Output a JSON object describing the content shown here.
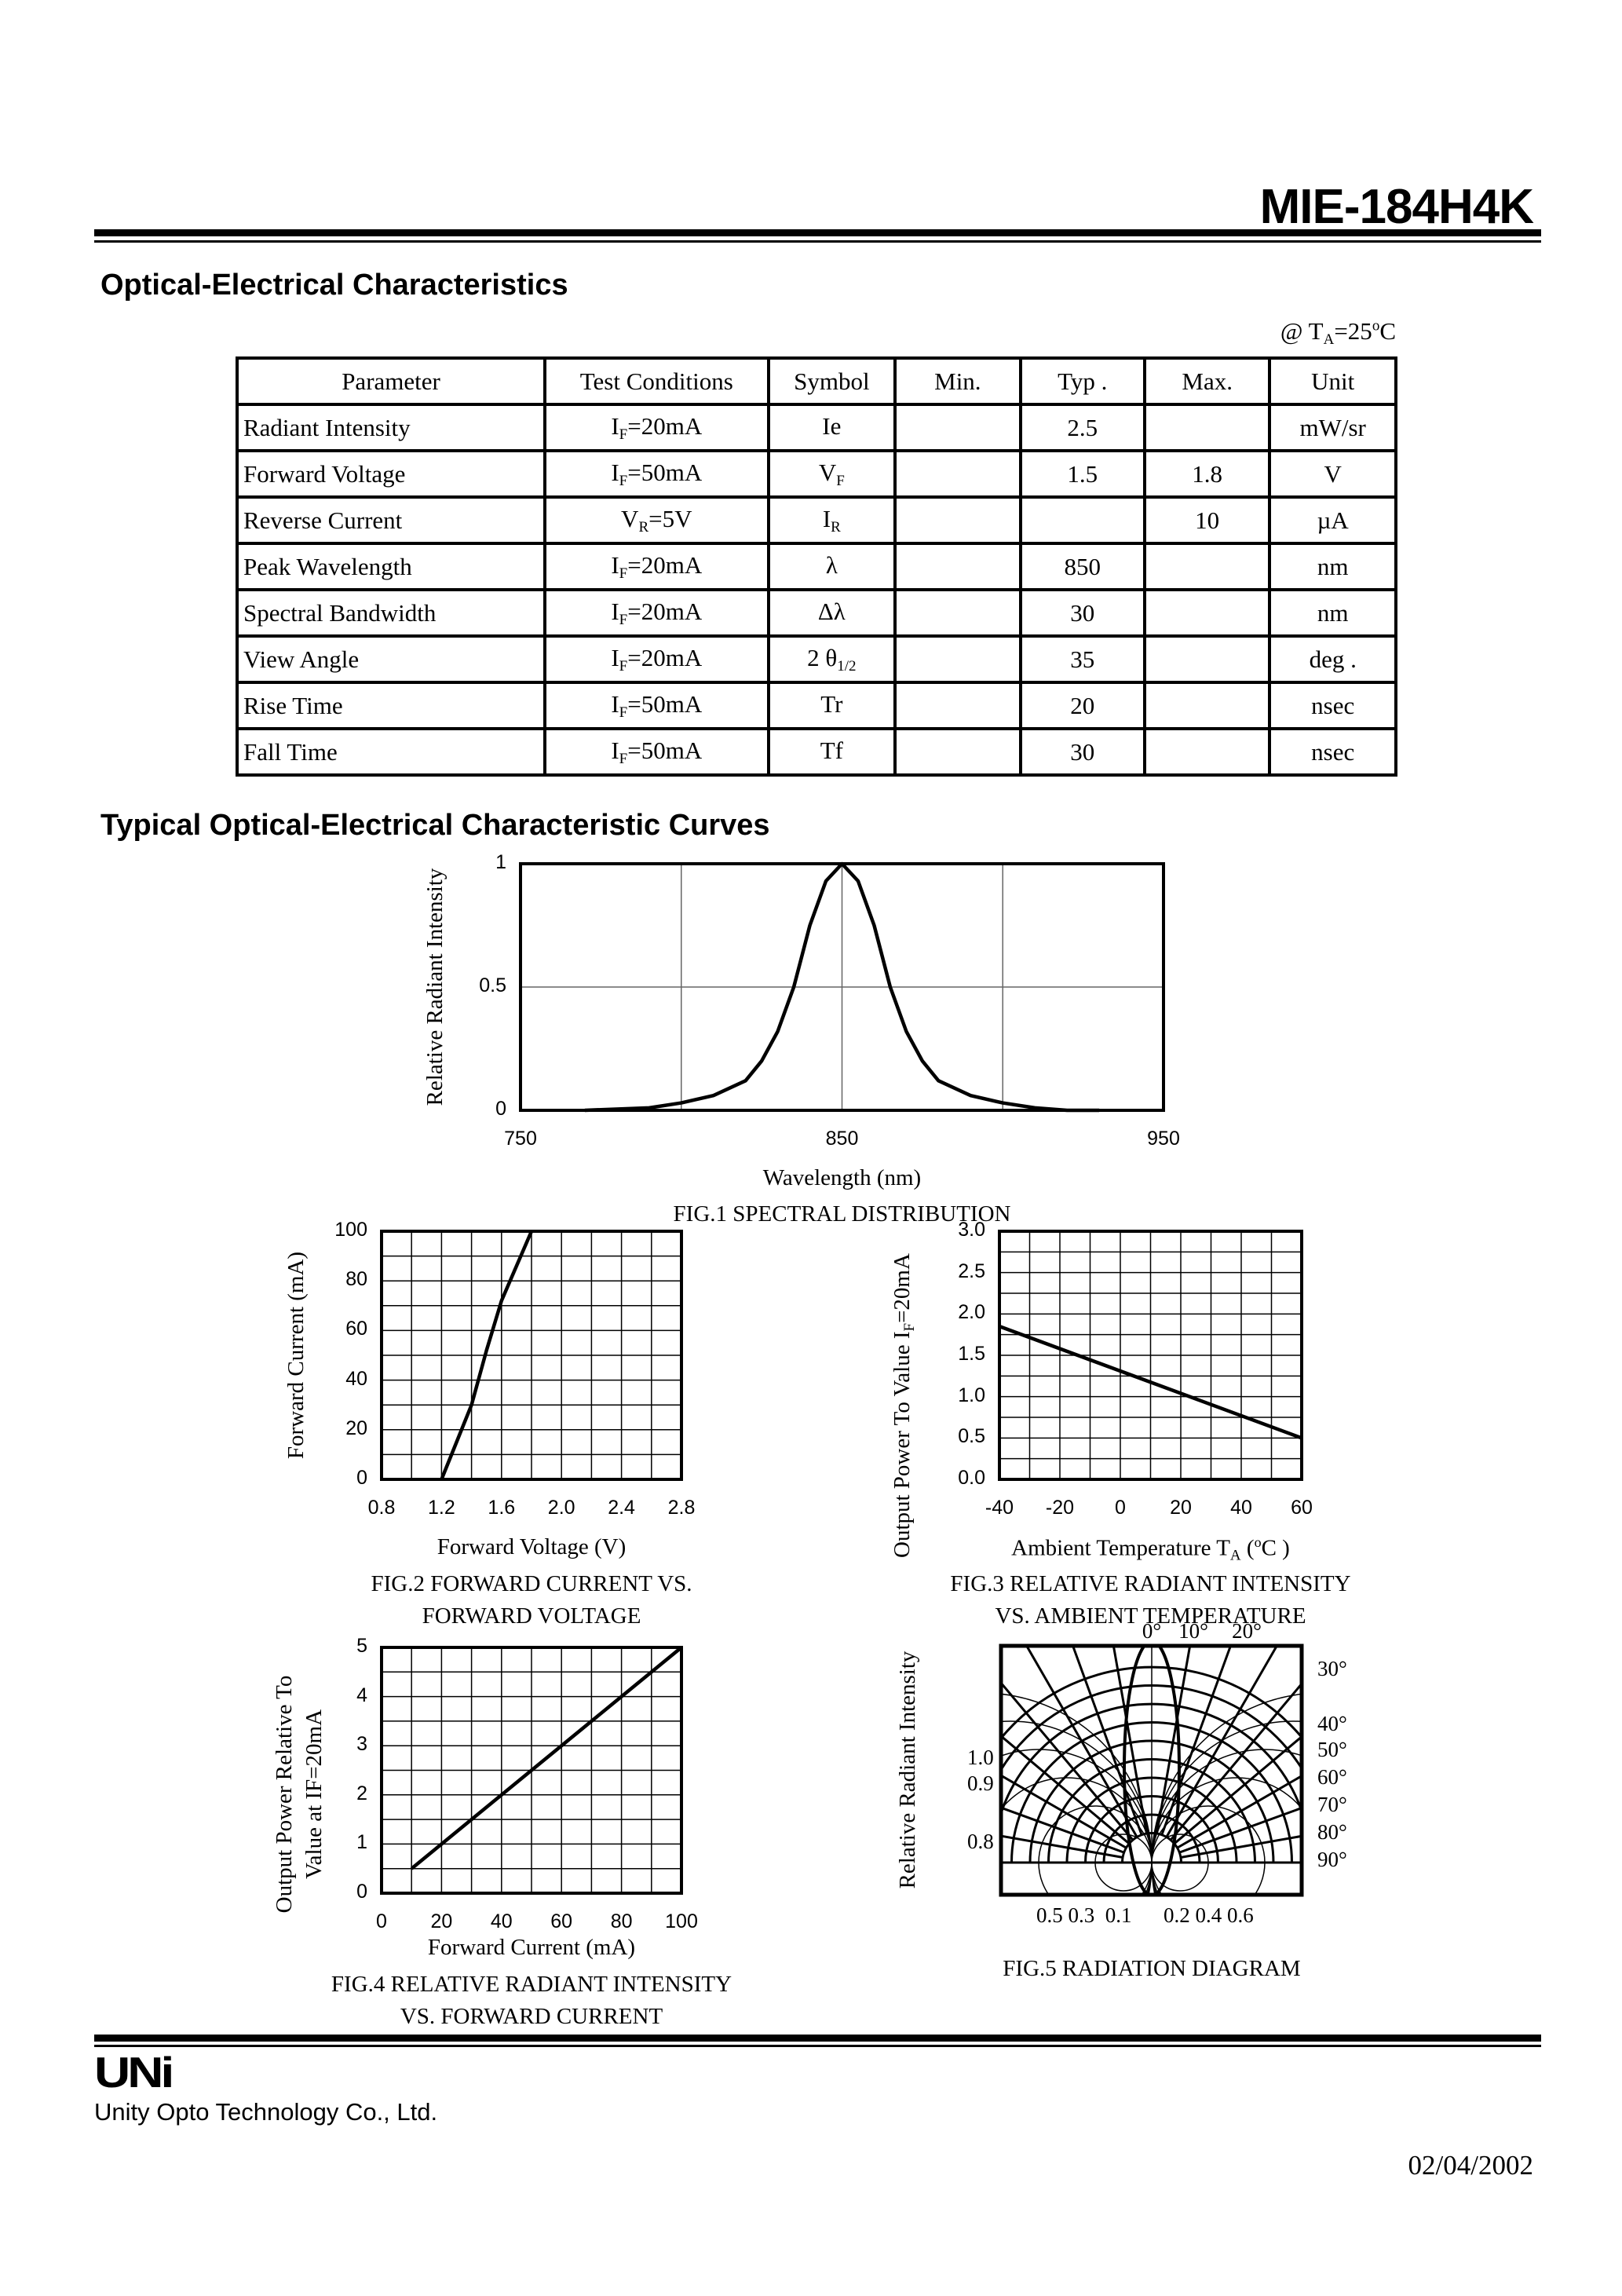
{
  "header": {
    "part_number": "MIE-184H4K"
  },
  "section1": {
    "title": "Optical-Electrical Characteristics",
    "condition": {
      "prefix": "@ T",
      "sub": "A",
      "suffix": "=25",
      "sup": "o",
      "unit": "C"
    }
  },
  "table": {
    "headers": [
      "Parameter",
      "Test Conditions",
      "Symbol",
      "Min.",
      "Typ .",
      "Max.",
      "Unit"
    ],
    "rows": [
      {
        "parameter": "Radiant Intensity",
        "cond": {
          "a": "I",
          "s": "F",
          "b": "=20mA"
        },
        "sym": {
          "a": "Ie",
          "s": ""
        },
        "min": "",
        "typ": "2.5",
        "max": "",
        "unit": "mW/sr"
      },
      {
        "parameter": "Forward Voltage",
        "cond": {
          "a": "I",
          "s": "F",
          "b": "=50mA"
        },
        "sym": {
          "a": "V",
          "s": "F"
        },
        "min": "",
        "typ": "1.5",
        "max": "1.8",
        "unit": "V"
      },
      {
        "parameter": "Reverse Current",
        "cond": {
          "a": "V",
          "s": "R",
          "b": "=5V"
        },
        "sym": {
          "a": "I",
          "s": "R"
        },
        "min": "",
        "typ": "",
        "max": "10",
        "unit": "µA"
      },
      {
        "parameter": "Peak Wavelength",
        "cond": {
          "a": "I",
          "s": "F",
          "b": "=20mA"
        },
        "sym": {
          "a": "λ",
          "s": ""
        },
        "min": "",
        "typ": "850",
        "max": "",
        "unit": "nm"
      },
      {
        "parameter": "Spectral Bandwidth",
        "cond": {
          "a": "I",
          "s": "F",
          "b": "=20mA"
        },
        "sym": {
          "a": "Δλ",
          "s": ""
        },
        "min": "",
        "typ": "30",
        "max": "",
        "unit": "nm"
      },
      {
        "parameter": "View Angle",
        "cond": {
          "a": "I",
          "s": "F",
          "b": "=20mA"
        },
        "sym": {
          "a": "2 θ",
          "s": "1/2"
        },
        "min": "",
        "typ": "35",
        "max": "",
        "unit": "deg ."
      },
      {
        "parameter": "Rise Time",
        "cond": {
          "a": "I",
          "s": "F",
          "b": "=50mA"
        },
        "sym": {
          "a": "Tr",
          "s": ""
        },
        "min": "",
        "typ": "20",
        "max": "",
        "unit": "nsec"
      },
      {
        "parameter": "Fall Time",
        "cond": {
          "a": "I",
          "s": "F",
          "b": "=50mA"
        },
        "sym": {
          "a": "Tf",
          "s": ""
        },
        "min": "",
        "typ": "30",
        "max": "",
        "unit": "nsec"
      }
    ]
  },
  "section2": {
    "title": "Typical  Optical-Electrical Characteristic Curves"
  },
  "chart_data": [
    {
      "type": "line",
      "caption": [
        "FIG.1 SPECTRAL DISTRIBUTION"
      ],
      "xlabel": "Wavelength (nm)",
      "ylabel": "Relative Radiant Intensity",
      "xlim": [
        750,
        950
      ],
      "ylim": [
        0,
        1
      ],
      "xticks": [
        "750",
        "850",
        "950"
      ],
      "yticks": [
        "0",
        "0.5",
        "1"
      ],
      "xgrid": [
        800,
        850,
        900
      ],
      "ygrid": [
        0.5
      ],
      "x": [
        770,
        790,
        800,
        810,
        820,
        825,
        830,
        835,
        840,
        845,
        850,
        855,
        860,
        865,
        870,
        875,
        880,
        890,
        900,
        910,
        920,
        930
      ],
      "y": [
        0,
        0.01,
        0.03,
        0.06,
        0.12,
        0.2,
        0.32,
        0.5,
        0.75,
        0.93,
        1,
        0.93,
        0.75,
        0.5,
        0.32,
        0.2,
        0.12,
        0.06,
        0.03,
        0.01,
        0,
        0
      ]
    },
    {
      "type": "line",
      "caption": [
        "FIG.2 FORWARD CURRENT VS.",
        "FORWARD VOLTAGE"
      ],
      "xlabel": "Forward Voltage (V)",
      "ylabel": "Forward Current (mA)",
      "xlim": [
        0.8,
        2.8
      ],
      "ylim": [
        0,
        100
      ],
      "xticks": [
        "0.8",
        "1.2",
        "1.6",
        "2.0",
        "2.4",
        "2.8"
      ],
      "yticks": [
        "0",
        "20",
        "40",
        "60",
        "80",
        "100"
      ],
      "grid": [
        10,
        10
      ],
      "x": [
        1.2,
        1.3,
        1.4,
        1.5,
        1.6,
        1.8
      ],
      "y": [
        0,
        15,
        30,
        52,
        72,
        100
      ]
    },
    {
      "type": "line",
      "caption": [
        "FIG.3 RELATIVE RADIANT INTENSITY",
        "VS. AMBIENT TEMPERATURE"
      ],
      "xlabel": {
        "a": "Ambient Temperature T",
        "s": "A",
        "b": " (",
        "sup": "o",
        "c": "C )"
      },
      "ylabel": {
        "a": "Output Power To Value I",
        "s": "F",
        "b": "=20mA"
      },
      "xlim": [
        -40,
        60
      ],
      "ylim": [
        0,
        3
      ],
      "xticks": [
        "-40",
        "-20",
        "0",
        "20",
        "40",
        "60"
      ],
      "yticks": [
        "0.0",
        "0.5",
        "1.0",
        "1.5",
        "2.0",
        "2.5",
        "3.0"
      ],
      "grid": [
        10,
        12
      ],
      "x": [
        -40,
        60
      ],
      "y": [
        1.85,
        0.5
      ]
    },
    {
      "type": "line",
      "caption": [
        "FIG.4 RELATIVE RADIANT INTENSITY",
        "VS. FORWARD CURRENT"
      ],
      "xlabel": "Forward Current (mA)",
      "ylabel": [
        "Output Power Relative To",
        "Value at IF=20mA"
      ],
      "xlim": [
        0,
        100
      ],
      "ylim": [
        0,
        5
      ],
      "xticks": [
        "0",
        "20",
        "40",
        "60",
        "80",
        "100"
      ],
      "yticks": [
        "0",
        "1",
        "2",
        "3",
        "4",
        "5"
      ],
      "grid": [
        10,
        10
      ],
      "x": [
        10,
        100
      ],
      "y": [
        0.5,
        5
      ]
    },
    {
      "type": "polar",
      "caption": [
        "FIG.5 RADIATION DIAGRAM"
      ],
      "ylabel": "Relative Radiant Intensity",
      "angle_labels_top": [
        "0°",
        "10°",
        "20°"
      ],
      "angle_labels_right": [
        "30°",
        "40°",
        "50°",
        "60°",
        "70°",
        "80°",
        "90°"
      ],
      "left_labels": [
        "1.0",
        "0.9",
        "0.8"
      ],
      "bottom_labels": "0.5 0.3  0.1      0.2 0.4 0.6",
      "view_angle_deg": 35
    }
  ],
  "footer": {
    "logo": "UNi",
    "company": "Unity Opto Technology Co., Ltd.",
    "date": "02/04/2002"
  }
}
